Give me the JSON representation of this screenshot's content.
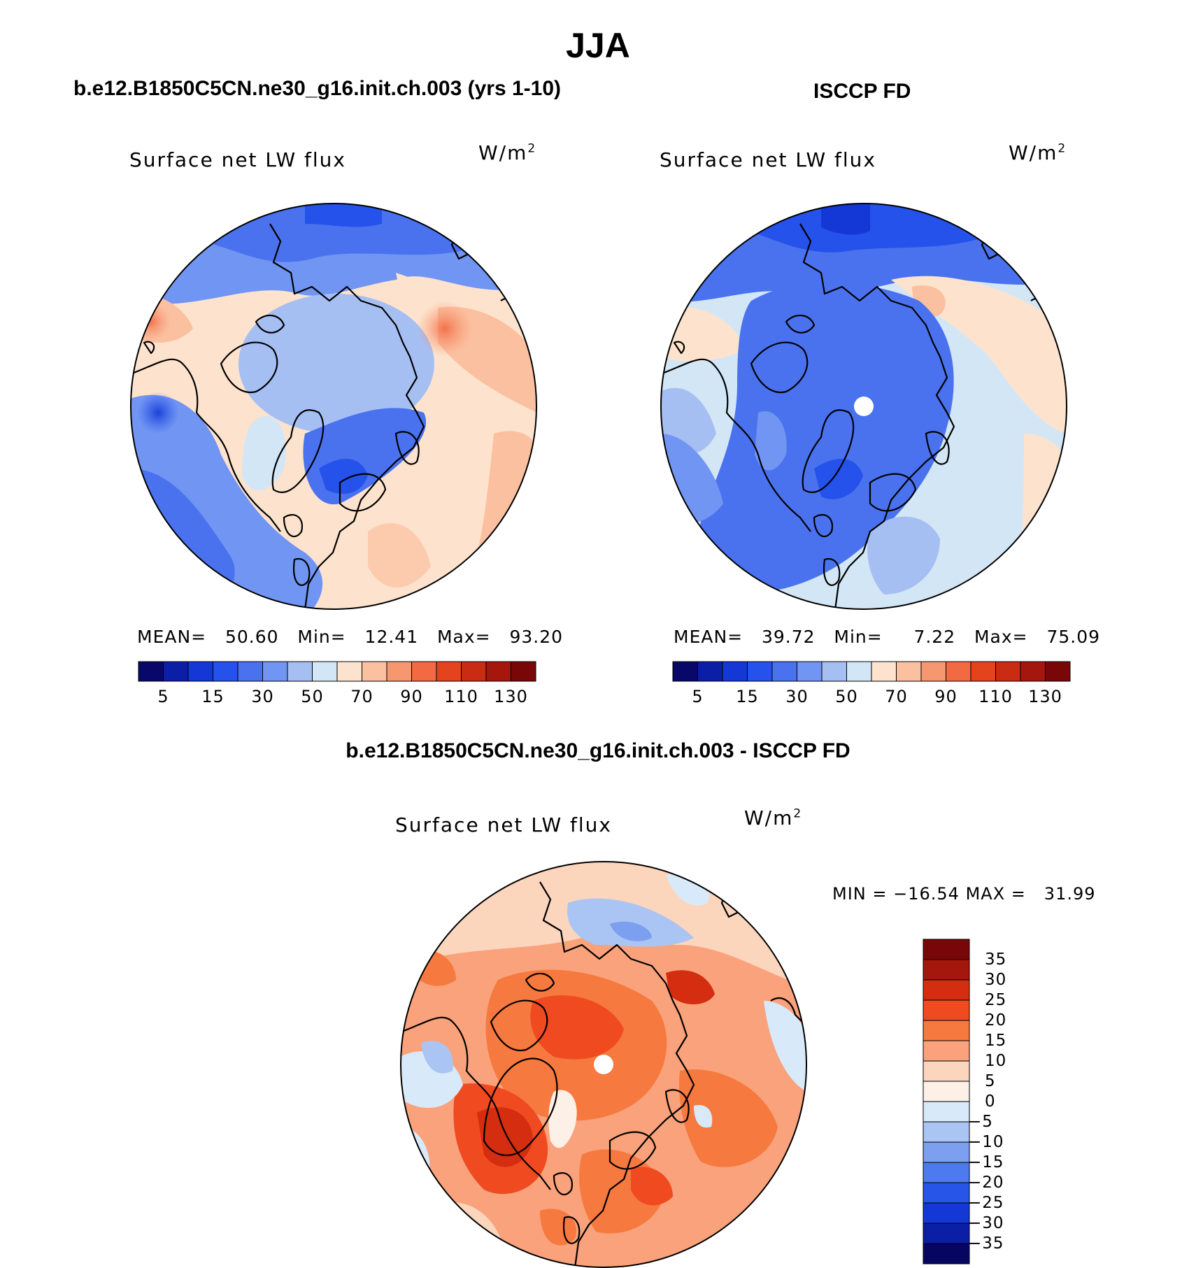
{
  "figure": {
    "season": "JJA",
    "panels": [
      {
        "heading": "b.e12.B1850C5CN.ne30_g16.init.ch.003 (yrs 1-10)",
        "variable": "Surface net LW flux",
        "units": "W/m",
        "units_sup": "2",
        "stats": {
          "mean_label": "MEAN=",
          "mean": "50.60",
          "min_label": "Min=",
          "min": "12.41",
          "max_label": "Max=",
          "max": "93.20"
        }
      },
      {
        "heading": "ISCCP FD",
        "variable": "Surface net LW flux",
        "units": "W/m",
        "units_sup": "2",
        "stats": {
          "mean_label": "MEAN=",
          "mean": "39.72",
          "min_label": "Min=",
          "min": "7.22",
          "max_label": "Max=",
          "max": "75.09"
        }
      },
      {
        "heading": "b.e12.B1850C5CN.ne30_g16.init.ch.003 - ISCCP FD",
        "variable": "Surface net LW flux",
        "units": "W/m",
        "units_sup": "2",
        "stats": {
          "min_label": "MIN =",
          "min": "−16.54",
          "max_label": "MAX =",
          "max": "31.99"
        }
      }
    ]
  },
  "colorbars": {
    "absolute": {
      "colors": [
        "#08086b",
        "#0b1fa6",
        "#1438d6",
        "#2452ea",
        "#4a72ee",
        "#7195f2",
        "#a6bff3",
        "#d3e6f6",
        "#fde3cd",
        "#fbc0a0",
        "#f7976f",
        "#f26a42",
        "#e4441d",
        "#c92c12",
        "#a5160d",
        "#7a0707"
      ],
      "ticks": [
        "5",
        "15",
        "30",
        "50",
        "70",
        "90",
        "110",
        "130"
      ]
    },
    "difference": {
      "colors": [
        "#7a0707",
        "#a5160d",
        "#d42d0f",
        "#f04a21",
        "#f6793f",
        "#f9a27b",
        "#fcd5bd",
        "#fdf0e6",
        "#d8e9fa",
        "#aac5f3",
        "#7d9ff0",
        "#4d7aec",
        "#2755e8",
        "#1438d6",
        "#0b1fa6",
        "#060660"
      ],
      "ticks": [
        "35",
        "30",
        "25",
        "20",
        "15",
        "10",
        "5",
        "0",
        "−5",
        "−10",
        "−15",
        "−20",
        "−25",
        "−30",
        "−35"
      ]
    }
  }
}
